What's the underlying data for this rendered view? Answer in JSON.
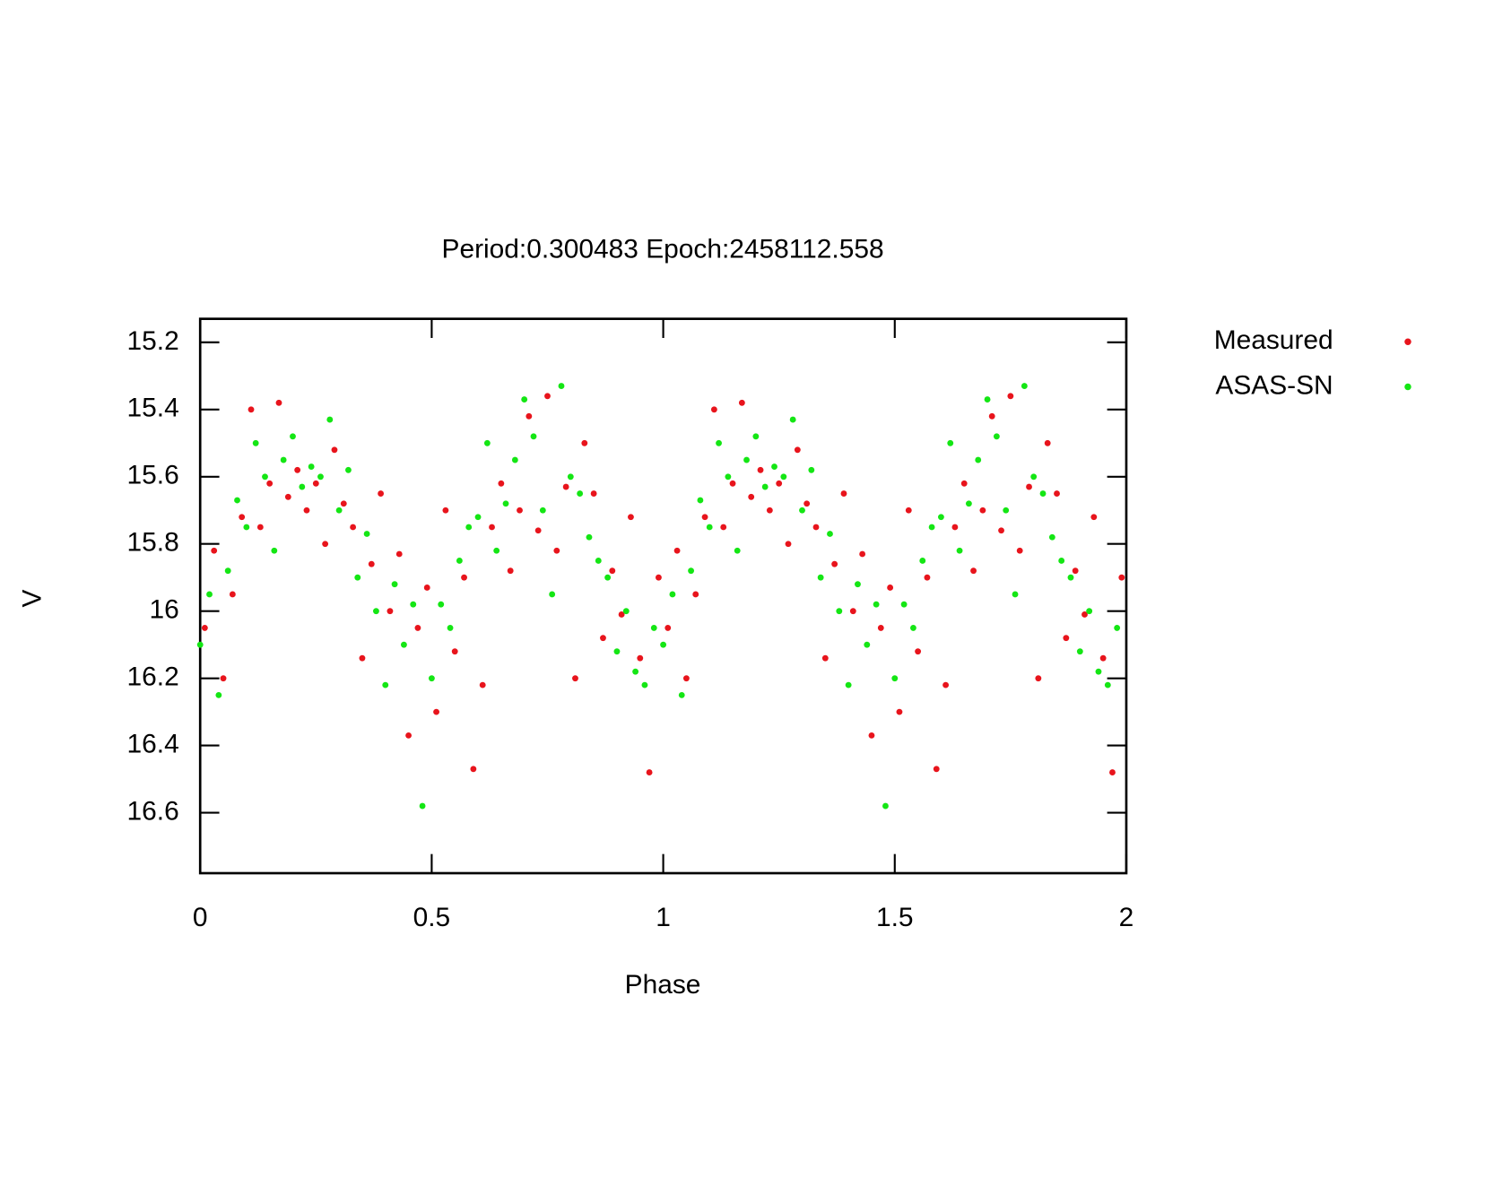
{
  "chart_data": {
    "type": "scatter",
    "title": "Period:0.300483 Epoch:2458112.558",
    "x_label": "Phase",
    "y_label": "V",
    "xlim": [
      0,
      2
    ],
    "xticks": [
      0,
      0.5,
      1,
      1.5,
      2
    ],
    "ylim": [
      15.13,
      16.78
    ],
    "y_inverted": true,
    "yticks": [
      15.2,
      15.4,
      15.6,
      15.8,
      16,
      16.2,
      16.4,
      16.6
    ],
    "legend": "outside-right-top",
    "series": [
      {
        "name": "Measured",
        "color": "#e8141c",
        "x": [
          0.01,
          0.03,
          0.05,
          0.07,
          0.09,
          0.11,
          0.13,
          0.15,
          0.17,
          0.19,
          0.21,
          0.23,
          0.25,
          0.27,
          0.29,
          0.31,
          0.33,
          0.35,
          0.37,
          0.39,
          0.41,
          0.43,
          0.45,
          0.47,
          0.49,
          0.51,
          0.53,
          0.55,
          0.57,
          0.59,
          0.61,
          0.63,
          0.65,
          0.67,
          0.69,
          0.71,
          0.73,
          0.75,
          0.77,
          0.79,
          0.81,
          0.83,
          0.85,
          0.87,
          0.89,
          0.91,
          0.93,
          0.95,
          0.97,
          0.99,
          1.01,
          1.03,
          1.05,
          1.07,
          1.09,
          1.11,
          1.13,
          1.15,
          1.17,
          1.19,
          1.21,
          1.23,
          1.25,
          1.27,
          1.29,
          1.31,
          1.33,
          1.35,
          1.37,
          1.39,
          1.41,
          1.43,
          1.45,
          1.47,
          1.49,
          1.51,
          1.53,
          1.55,
          1.57,
          1.59,
          1.61,
          1.63,
          1.65,
          1.67,
          1.69,
          1.71,
          1.73,
          1.75,
          1.77,
          1.79,
          1.81,
          1.83,
          1.85,
          1.87,
          1.89,
          1.91,
          1.93,
          1.95,
          1.97,
          1.99
        ],
        "values": [
          16.05,
          15.82,
          16.2,
          15.95,
          15.72,
          15.4,
          15.75,
          15.62,
          15.38,
          15.66,
          15.58,
          15.7,
          15.62,
          15.8,
          15.52,
          15.68,
          15.75,
          16.14,
          15.86,
          15.65,
          16.0,
          15.83,
          16.37,
          16.05,
          15.93,
          16.3,
          15.7,
          16.12,
          15.9,
          16.47,
          16.22,
          15.75,
          15.62,
          15.88,
          15.7,
          15.42,
          15.76,
          15.36,
          15.82,
          15.63,
          16.2,
          15.5,
          15.65,
          16.08,
          15.88,
          16.01,
          15.72,
          16.14,
          16.48,
          15.9,
          16.05,
          15.82,
          16.2,
          15.95,
          15.72,
          15.4,
          15.75,
          15.62,
          15.38,
          15.66,
          15.58,
          15.7,
          15.62,
          15.8,
          15.52,
          15.68,
          15.75,
          16.14,
          15.86,
          15.65,
          16.0,
          15.83,
          16.37,
          16.05,
          15.93,
          16.3,
          15.7,
          16.12,
          15.9,
          16.47,
          16.22,
          15.75,
          15.62,
          15.88,
          15.7,
          15.42,
          15.76,
          15.36,
          15.82,
          15.63,
          16.2,
          15.5,
          15.65,
          16.08,
          15.88,
          16.01,
          15.72,
          16.14,
          16.48,
          15.9
        ]
      },
      {
        "name": "ASAS-SN",
        "color": "#14e614",
        "x": [
          0.0,
          0.02,
          0.04,
          0.06,
          0.08,
          0.1,
          0.12,
          0.14,
          0.16,
          0.18,
          0.2,
          0.22,
          0.24,
          0.26,
          0.28,
          0.3,
          0.32,
          0.34,
          0.36,
          0.38,
          0.4,
          0.42,
          0.44,
          0.46,
          0.48,
          0.5,
          0.52,
          0.54,
          0.56,
          0.58,
          0.6,
          0.62,
          0.64,
          0.66,
          0.68,
          0.7,
          0.72,
          0.74,
          0.76,
          0.78,
          0.8,
          0.82,
          0.84,
          0.86,
          0.88,
          0.9,
          0.92,
          0.94,
          0.96,
          0.98,
          1.0,
          1.02,
          1.04,
          1.06,
          1.08,
          1.1,
          1.12,
          1.14,
          1.16,
          1.18,
          1.2,
          1.22,
          1.24,
          1.26,
          1.28,
          1.3,
          1.32,
          1.34,
          1.36,
          1.38,
          1.4,
          1.42,
          1.44,
          1.46,
          1.48,
          1.5,
          1.52,
          1.54,
          1.56,
          1.58,
          1.6,
          1.62,
          1.64,
          1.66,
          1.68,
          1.7,
          1.72,
          1.74,
          1.76,
          1.78,
          1.8,
          1.82,
          1.84,
          1.86,
          1.88,
          1.9,
          1.92,
          1.94,
          1.96,
          1.98
        ],
        "values": [
          16.1,
          15.95,
          16.25,
          15.88,
          15.67,
          15.75,
          15.5,
          15.6,
          15.82,
          15.55,
          15.48,
          15.63,
          15.57,
          15.6,
          15.43,
          15.7,
          15.58,
          15.9,
          15.77,
          16.0,
          16.22,
          15.92,
          16.1,
          15.98,
          16.58,
          16.2,
          15.98,
          16.05,
          15.85,
          15.75,
          15.72,
          15.5,
          15.82,
          15.68,
          15.55,
          15.37,
          15.48,
          15.7,
          15.95,
          15.33,
          15.6,
          15.65,
          15.78,
          15.85,
          15.9,
          16.12,
          16.0,
          16.18,
          16.22,
          16.05,
          16.1,
          15.95,
          16.25,
          15.88,
          15.67,
          15.75,
          15.5,
          15.6,
          15.82,
          15.55,
          15.48,
          15.63,
          15.57,
          15.6,
          15.43,
          15.7,
          15.58,
          15.9,
          15.77,
          16.0,
          16.22,
          15.92,
          16.1,
          15.98,
          16.58,
          16.2,
          15.98,
          16.05,
          15.85,
          15.75,
          15.72,
          15.5,
          15.82,
          15.68,
          15.55,
          15.37,
          15.48,
          15.7,
          15.95,
          15.33,
          15.6,
          15.65,
          15.78,
          15.85,
          15.9,
          16.12,
          16.0,
          16.18,
          16.22,
          16.05
        ]
      }
    ]
  }
}
